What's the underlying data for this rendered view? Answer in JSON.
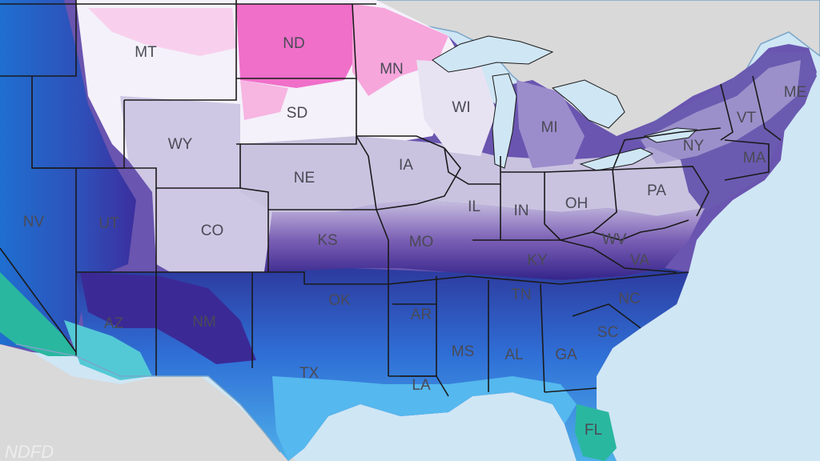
{
  "map": {
    "states": [
      {
        "code": "MT"
      },
      {
        "code": "ND"
      },
      {
        "code": "MN"
      },
      {
        "code": "SD"
      },
      {
        "code": "WI"
      },
      {
        "code": "WY"
      },
      {
        "code": "MI"
      },
      {
        "code": "ME"
      },
      {
        "code": "NY"
      },
      {
        "code": "VT"
      },
      {
        "code": "MA"
      },
      {
        "code": "IA"
      },
      {
        "code": "NE"
      },
      {
        "code": "PA"
      },
      {
        "code": "IL"
      },
      {
        "code": "IN"
      },
      {
        "code": "OH"
      },
      {
        "code": "NV"
      },
      {
        "code": "UT"
      },
      {
        "code": "CO"
      },
      {
        "code": "KS"
      },
      {
        "code": "MO"
      },
      {
        "code": "WV"
      },
      {
        "code": "KY"
      },
      {
        "code": "VA"
      },
      {
        "code": "AZ"
      },
      {
        "code": "NM"
      },
      {
        "code": "OK"
      },
      {
        "code": "TN"
      },
      {
        "code": "NC"
      },
      {
        "code": "AR"
      },
      {
        "code": "SC"
      },
      {
        "code": "MS"
      },
      {
        "code": "AL"
      },
      {
        "code": "GA"
      },
      {
        "code": "TX"
      },
      {
        "code": "LA"
      },
      {
        "code": "FL"
      }
    ],
    "watermark": "NDFD",
    "colors": {
      "ocean": "#cfe6f5",
      "land_outside": "#d9d9d9",
      "coldest_magenta": "#f06fc9",
      "pink": "#f7a6dc",
      "white": "#f7f5fb",
      "lavender": "#c9c3e0",
      "purple": "#7b5fb5",
      "deep_purple": "#3f2a8c",
      "navy": "#2b2f9a",
      "blue": "#2f6fd6",
      "sky_blue": "#4fb0ea",
      "teal": "#2ab7a0",
      "border": "#1a1a1a"
    }
  }
}
